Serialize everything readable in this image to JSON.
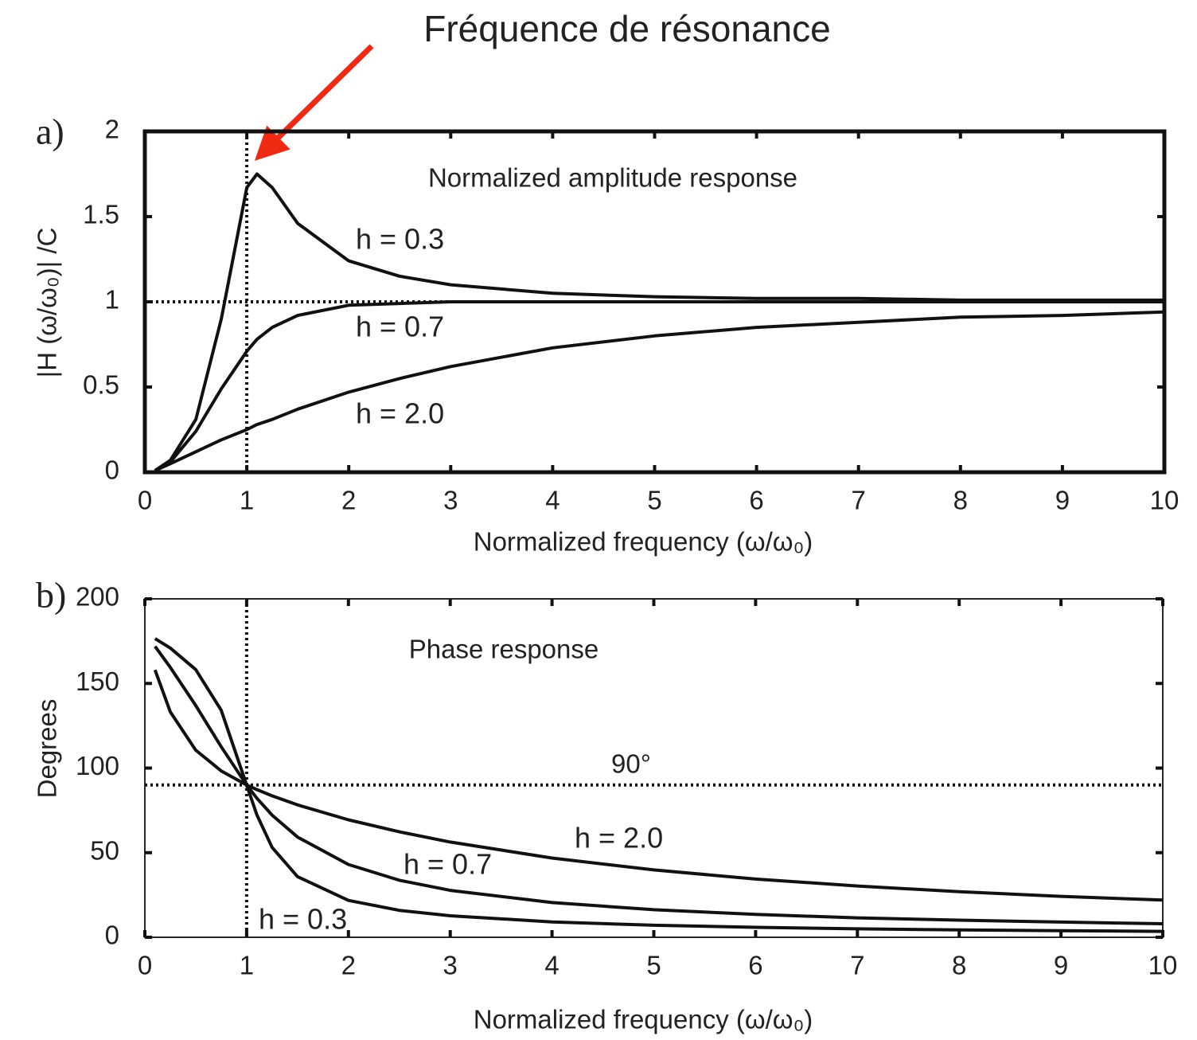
{
  "annotation": "Fréquence de résonance",
  "chart_data": [
    {
      "type": "line",
      "panel_label": "a)",
      "title": "Normalized amplitude response",
      "x_label": "Normalized frequency (ω/ω₀)",
      "y_label": "|H (ω/ω₀)| /C",
      "x": [
        0.1,
        0.25,
        0.5,
        0.75,
        1,
        1.1,
        1.25,
        1.5,
        2,
        2.5,
        3,
        4,
        5,
        6,
        7,
        8,
        9,
        10
      ],
      "series": [
        {
          "name": "h = 0.3",
          "color": "#111111",
          "values": [
            0.01,
            0.07,
            0.31,
            0.9,
            1.67,
            1.75,
            1.67,
            1.46,
            1.24,
            1.15,
            1.1,
            1.05,
            1.03,
            1.02,
            1.02,
            1.01,
            1.01,
            1.01
          ]
        },
        {
          "name": "h = 0.7",
          "color": "#111111",
          "values": [
            0.01,
            0.06,
            0.24,
            0.49,
            0.71,
            0.78,
            0.85,
            0.92,
            0.98,
            0.99,
            1.0,
            1.0,
            1.0,
            1.0,
            1.0,
            1.0,
            1.0,
            1.0
          ]
        },
        {
          "name": "h = 2.0",
          "color": "#111111",
          "values": [
            0.01,
            0.05,
            0.12,
            0.19,
            0.25,
            0.28,
            0.31,
            0.37,
            0.47,
            0.55,
            0.62,
            0.73,
            0.8,
            0.85,
            0.88,
            0.91,
            0.92,
            0.94
          ]
        }
      ],
      "xlim": [
        0,
        10
      ],
      "xticks": [
        0,
        1,
        2,
        3,
        4,
        5,
        6,
        7,
        8,
        9,
        10
      ],
      "ylim": [
        0,
        2
      ],
      "yticks": [
        0,
        0.5,
        1,
        1.5,
        2
      ],
      "hline": 1,
      "vline": 1
    },
    {
      "type": "line",
      "panel_label": "b)",
      "title": "Phase response",
      "x_label": "Normalized frequency (ω/ω₀)",
      "y_label": "Degrees",
      "x": [
        0.1,
        0.25,
        0.5,
        0.75,
        1,
        1.1,
        1.25,
        1.5,
        2,
        2.5,
        3,
        4,
        5,
        6,
        7,
        8,
        9,
        10
      ],
      "series": [
        {
          "name": "h = 2.0",
          "color": "#111111",
          "values": [
            158.0,
            133.2,
            110.6,
            98.3,
            90,
            87.3,
            83.6,
            78.2,
            69.4,
            62.3,
            56.3,
            46.8,
            39.8,
            34.4,
            30.3,
            26.9,
            24.2,
            22.0
          ]
        },
        {
          "name": "h = 0.7",
          "color": "#111111",
          "values": [
            171.9,
            159.5,
            137.0,
            112.6,
            90,
            82.2,
            72.2,
            59.2,
            43.0,
            33.7,
            27.7,
            20.5,
            16.3,
            13.5,
            11.5,
            10.1,
            9.0,
            8.0
          ]
        },
        {
          "name": "h = 0.3",
          "color": "#111111",
          "values": [
            176.5,
            170.9,
            158.2,
            134.2,
            90,
            72.4,
            53.1,
            35.8,
            21.8,
            15.9,
            12.7,
            9.1,
            7.1,
            5.9,
            5.0,
            4.4,
            3.9,
            3.5
          ]
        }
      ],
      "xlim": [
        0,
        10
      ],
      "xticks": [
        0,
        1,
        2,
        3,
        4,
        5,
        6,
        7,
        8,
        9,
        10
      ],
      "ylim": [
        0,
        200
      ],
      "yticks": [
        0,
        50,
        100,
        150,
        200
      ],
      "hline": 90,
      "hline_label": "90°",
      "vline": 1
    }
  ]
}
